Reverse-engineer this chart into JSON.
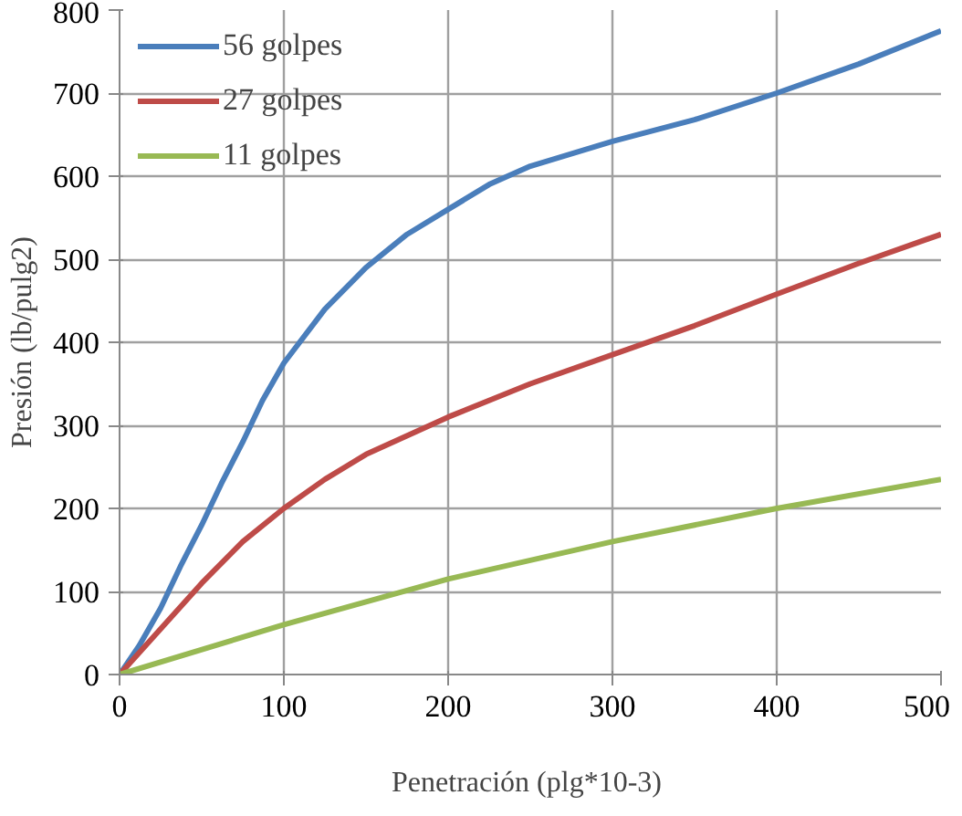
{
  "chart_data": {
    "type": "line",
    "xlabel": "Penetración  (plg*10-3)",
    "ylabel": "Presión (lb/pulg2)",
    "xlim": [
      0,
      500
    ],
    "xticks": [
      0,
      100,
      200,
      300,
      400,
      500
    ],
    "ylim": [
      0,
      800
    ],
    "yticks": [
      0,
      100,
      200,
      300,
      400,
      500,
      600,
      700,
      800
    ],
    "grid": true,
    "legend": "top left",
    "marker": "none",
    "line_style": "solid",
    "series": [
      {
        "name": "56 golpes",
        "color": "#4a7ebb",
        "x": [
          0,
          12,
          25,
          37,
          50,
          62,
          75,
          87,
          100,
          125,
          150,
          175,
          200,
          225,
          250,
          300,
          350,
          400,
          450,
          500
        ],
        "values": [
          0,
          35,
          80,
          130,
          180,
          230,
          280,
          330,
          375,
          440,
          490,
          530,
          560,
          590,
          612,
          642,
          668,
          700,
          735,
          775
        ]
      },
      {
        "name": "27 golpes",
        "color": "#be4b48",
        "x": [
          0,
          25,
          50,
          75,
          100,
          125,
          150,
          200,
          250,
          300,
          350,
          400,
          450,
          500
        ],
        "values": [
          0,
          55,
          110,
          160,
          200,
          235,
          265,
          310,
          350,
          385,
          420,
          458,
          495,
          530
        ]
      },
      {
        "name": "11 golpes",
        "color": "#98b954",
        "x": [
          0,
          100,
          200,
          300,
          400,
          500
        ],
        "values": [
          0,
          60,
          115,
          160,
          200,
          235
        ]
      }
    ]
  }
}
